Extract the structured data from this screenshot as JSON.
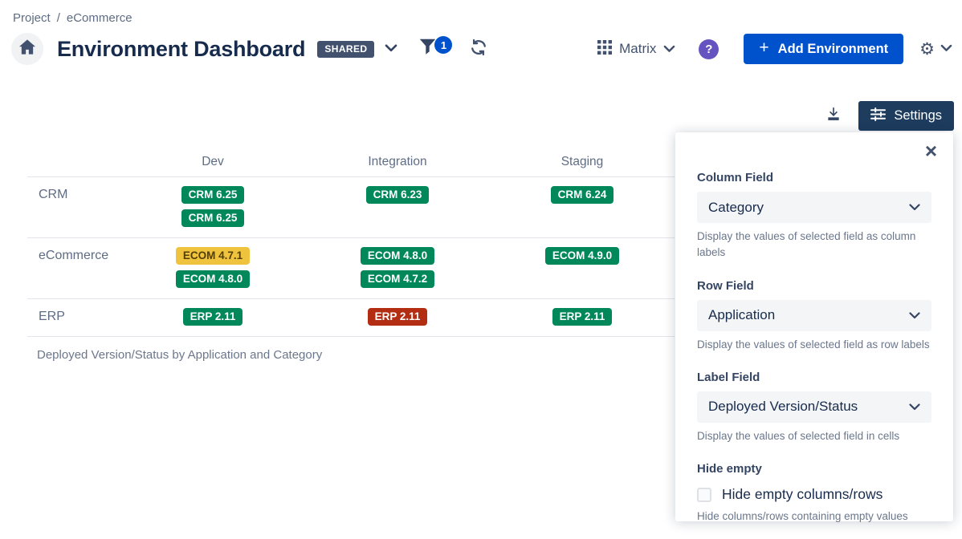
{
  "breadcrumb": {
    "project": "Project",
    "separator": "/",
    "current": "eCommerce"
  },
  "header": {
    "title": "Environment Dashboard",
    "shared_badge": "SHARED",
    "filter_count": "1",
    "view_label": "Matrix",
    "help_label": "?",
    "add_plus": "+",
    "add_label": "Add Environment"
  },
  "toolbar": {
    "settings_label": "Settings"
  },
  "matrix": {
    "columns": [
      "Dev",
      "Integration",
      "Staging"
    ],
    "rows": [
      {
        "label": "CRM",
        "cells": [
          [
            {
              "text": "CRM 6.25",
              "status": "green"
            },
            {
              "text": "CRM 6.25",
              "status": "green"
            }
          ],
          [
            {
              "text": "CRM 6.23",
              "status": "green"
            }
          ],
          [
            {
              "text": "CRM 6.24",
              "status": "green"
            }
          ]
        ]
      },
      {
        "label": "eCommerce",
        "cells": [
          [
            {
              "text": "ECOM 4.7.1",
              "status": "yellow"
            },
            {
              "text": "ECOM 4.8.0",
              "status": "green"
            }
          ],
          [
            {
              "text": "ECOM 4.8.0",
              "status": "green"
            },
            {
              "text": "ECOM 4.7.2",
              "status": "green"
            }
          ],
          [
            {
              "text": "ECOM 4.9.0",
              "status": "green"
            }
          ]
        ]
      },
      {
        "label": "ERP",
        "cells": [
          [
            {
              "text": "ERP 2.11",
              "status": "green"
            }
          ],
          [
            {
              "text": "ERP 2.11",
              "status": "red"
            }
          ],
          [
            {
              "text": "ERP 2.11",
              "status": "green"
            }
          ]
        ]
      }
    ],
    "caption": "Deployed Version/Status by Application and Category"
  },
  "settings_panel": {
    "close_glyph": "×",
    "fields": [
      {
        "label": "Column Field",
        "value": "Category",
        "help": "Display the values of selected field as column labels"
      },
      {
        "label": "Row Field",
        "value": "Application",
        "help": "Display the values of selected field as row labels"
      },
      {
        "label": "Label Field",
        "value": "Deployed Version/Status",
        "help": "Display the values of selected field in cells"
      }
    ],
    "hide_empty": {
      "label": "Hide empty",
      "checkbox_label": "Hide empty columns/rows",
      "help": "Hide columns/rows containing empty values",
      "checked": false
    }
  },
  "colors": {
    "accent_blue": "#0052CC",
    "badge_green": "#00875A",
    "badge_yellow": "#F0C33E",
    "badge_red": "#B32D12",
    "settings_navy": "#1D3C5E",
    "help_purple": "#6554C0",
    "slate_icon": "#42526E"
  }
}
